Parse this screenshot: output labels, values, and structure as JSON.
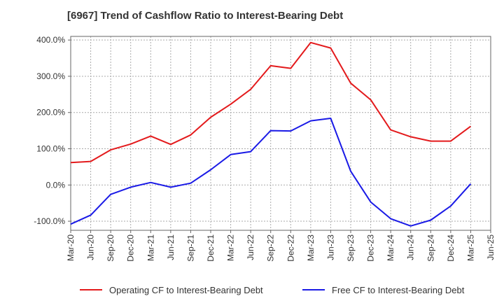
{
  "chart_data": {
    "type": "line",
    "title": "[6967]  Trend of Cashflow Ratio to Interest-Bearing Debt",
    "xlabel": "",
    "ylabel": "",
    "categories": [
      "Mar-20",
      "Jun-20",
      "Sep-20",
      "Dec-20",
      "Mar-21",
      "Jun-21",
      "Sep-21",
      "Dec-21",
      "Mar-22",
      "Jun-22",
      "Sep-22",
      "Dec-22",
      "Mar-23",
      "Jun-23",
      "Sep-23",
      "Dec-23",
      "Mar-24",
      "Jun-24",
      "Sep-24",
      "Dec-24",
      "Mar-25",
      "Jun-25"
    ],
    "ylim": [
      -125,
      410
    ],
    "yticks": [
      -100,
      0,
      100,
      200,
      300,
      400
    ],
    "ytick_labels": [
      "-100.0%",
      "0.0%",
      "100.0%",
      "200.0%",
      "300.0%",
      "400.0%"
    ],
    "grid": true,
    "legend_position": "bottom",
    "series": [
      {
        "name": "Operating CF to Interest-Bearing Debt",
        "color": "#e31a1c",
        "values": [
          62,
          65,
          97,
          113,
          135,
          112,
          138,
          187,
          223,
          264,
          329,
          322,
          393,
          378,
          281,
          235,
          152,
          133,
          121,
          121,
          162,
          null
        ]
      },
      {
        "name": "Free CF to Interest-Bearing Debt",
        "color": "#1a1ae6",
        "values": [
          -108,
          -83,
          -26,
          -6,
          7,
          -6,
          5,
          42,
          84,
          92,
          150,
          149,
          177,
          184,
          38,
          -47,
          -93,
          -113,
          -97,
          -58,
          3,
          null
        ]
      }
    ]
  }
}
